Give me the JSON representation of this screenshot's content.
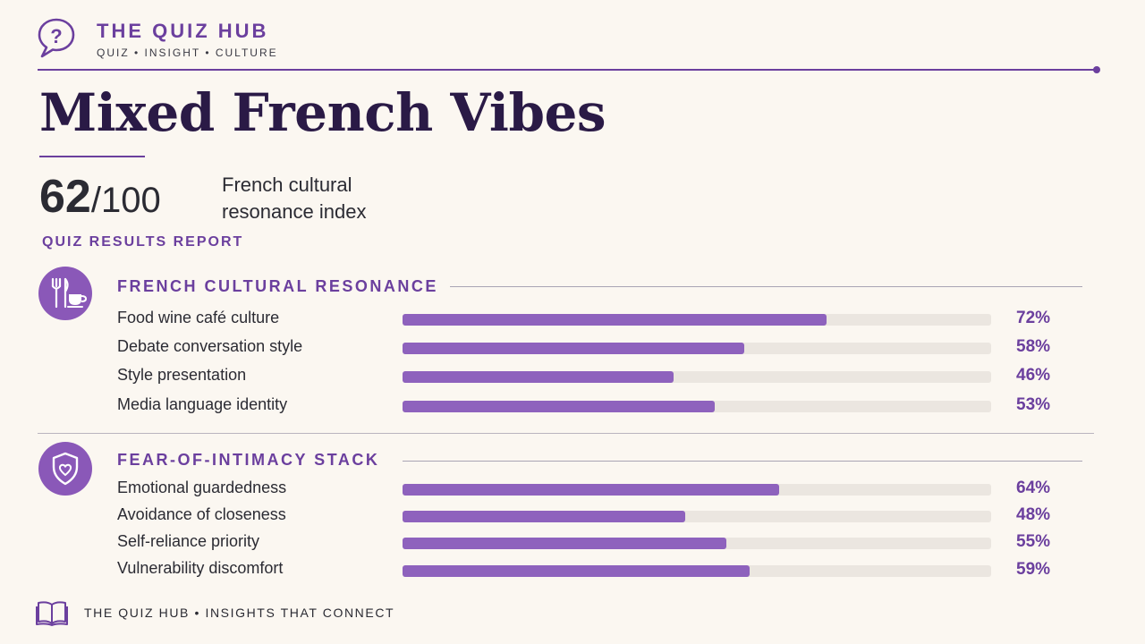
{
  "header": {
    "brand": "THE QUIZ HUB",
    "tagline": "QUIZ • INSIGHT • CULTURE",
    "logo_icon": "question-bubble-icon"
  },
  "title": "Mixed French Vibes",
  "score": {
    "value": "62",
    "denominator": "/100",
    "label": "French cultural resonance index",
    "report_label": "QUIZ RESULTS REPORT"
  },
  "sections": [
    {
      "title": "FRENCH CULTURAL RESONANCE",
      "icon": "fork-knife-cup-icon",
      "rows": [
        {
          "label": "Food wine café culture",
          "value": 72,
          "pct_text": "72%"
        },
        {
          "label": "Debate conversation style",
          "value": 58,
          "pct_text": "58%"
        },
        {
          "label": "Style presentation",
          "value": 46,
          "pct_text": "46%"
        },
        {
          "label": "Media language identity",
          "value": 53,
          "pct_text": "53%"
        }
      ]
    },
    {
      "title": "FEAR-OF-INTIMACY STACK",
      "icon": "shield-heart-icon",
      "rows": [
        {
          "label": "Emotional guardedness",
          "value": 64,
          "pct_text": "64%"
        },
        {
          "label": "Avoidance of closeness",
          "value": 48,
          "pct_text": "48%"
        },
        {
          "label": "Self-reliance priority",
          "value": 55,
          "pct_text": "55%"
        },
        {
          "label": "Vulnerability discomfort",
          "value": 59,
          "pct_text": "59%"
        }
      ]
    }
  ],
  "footer": {
    "text": "THE QUIZ HUB • INSIGHTS THAT CONNECT",
    "icon": "open-book-icon"
  },
  "colors": {
    "accent": "#6b3f9e",
    "bar_fill": "#8e62bd",
    "bar_track": "#ebe6e0",
    "background": "#fbf7f1",
    "title": "#2a1a46"
  }
}
